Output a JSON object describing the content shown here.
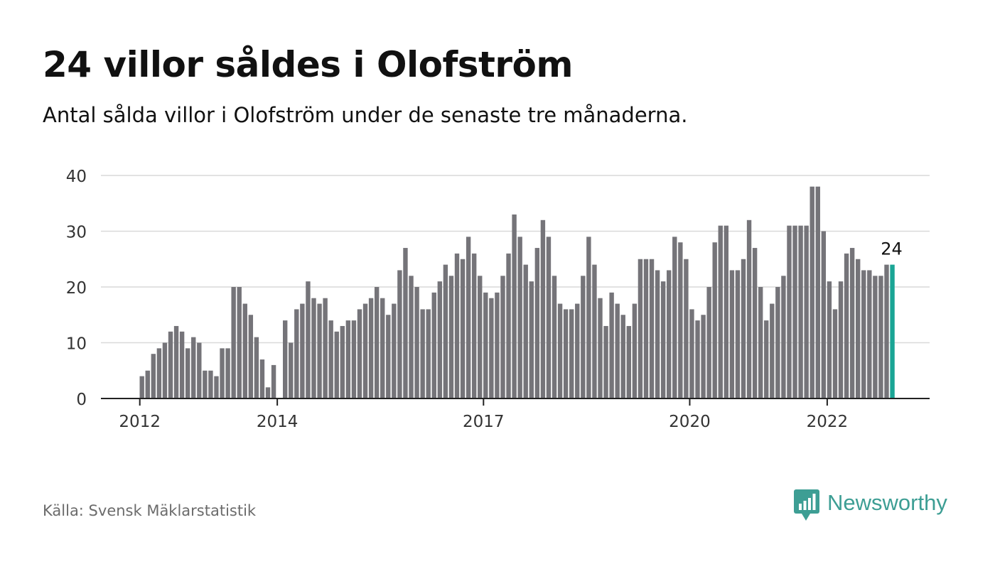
{
  "header": {
    "title": "24 villor såldes i Olofström",
    "subtitle": "Antal sålda villor i Olofström under de senaste tre månaderna."
  },
  "footer": {
    "source": "Källa: Svensk Mäklarstatistik",
    "brand": "Newsworthy"
  },
  "colors": {
    "bar": "#757479",
    "highlight": "#1aa595",
    "grid": "#d9d9d9",
    "axis": "#222222",
    "brand": "#3d9e94"
  },
  "icons": {
    "brand_logo": "chart-bubble-icon"
  },
  "chart_data": {
    "type": "bar",
    "title": "24 villor såldes i Olofström",
    "subtitle": "Antal sålda villor i Olofström under de senaste tre månaderna.",
    "xlabel": "",
    "ylabel": "",
    "ylim": [
      0,
      40
    ],
    "y_ticks": [
      0,
      10,
      20,
      30,
      40
    ],
    "x_ticks": [
      {
        "label": "2012",
        "index": 0
      },
      {
        "label": "2014",
        "index": 24
      },
      {
        "label": "2017",
        "index": 60
      },
      {
        "label": "2020",
        "index": 96
      },
      {
        "label": "2022",
        "index": 120
      }
    ],
    "grid": true,
    "legend": "none",
    "highlight": {
      "index": 131,
      "label": "24"
    },
    "series": [
      {
        "values": [
          4,
          5,
          8,
          9,
          10,
          12,
          13,
          12,
          9,
          11,
          10,
          5,
          5,
          4,
          9,
          9,
          20,
          20,
          17,
          15,
          11,
          7,
          2,
          6,
          0,
          14,
          10,
          16,
          17,
          21,
          18,
          17,
          18,
          14,
          12,
          13,
          14,
          14,
          16,
          17,
          18,
          20,
          18,
          15,
          17,
          23,
          27,
          22,
          20,
          16,
          16,
          19,
          21,
          24,
          22,
          26,
          25,
          29,
          26,
          22,
          19,
          18,
          19,
          22,
          26,
          33,
          29,
          24,
          21,
          27,
          32,
          29,
          22,
          17,
          16,
          16,
          17,
          22,
          29,
          24,
          18,
          13,
          19,
          17,
          15,
          13,
          17,
          25,
          25,
          25,
          23,
          21,
          23,
          29,
          28,
          25,
          16,
          14,
          15,
          20,
          28,
          31,
          31,
          23,
          23,
          25,
          32,
          27,
          20,
          14,
          17,
          20,
          22,
          31,
          31,
          31,
          31,
          38,
          38,
          30,
          21,
          16,
          21,
          26,
          27,
          25,
          23,
          23,
          22,
          22,
          24,
          24
        ]
      }
    ]
  }
}
